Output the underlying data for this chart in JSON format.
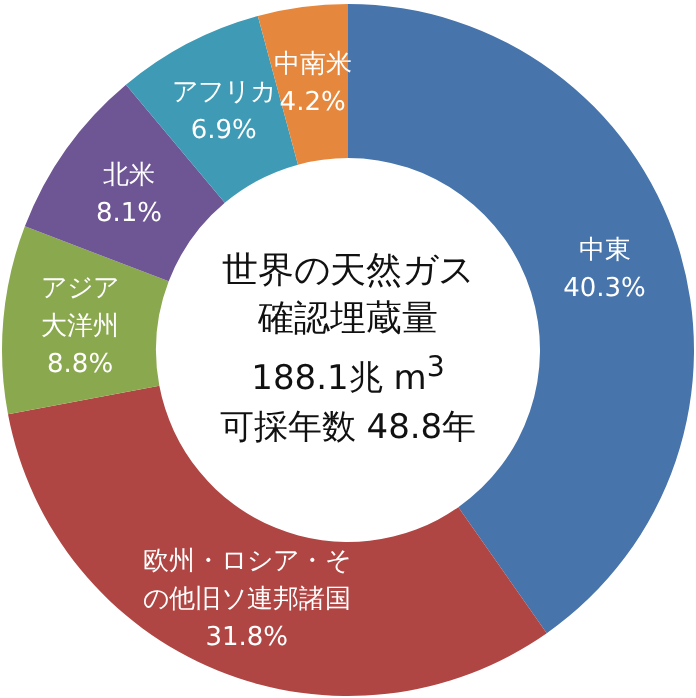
{
  "chart_data": {
    "type": "donut",
    "title": "世界の天然ガス確認埋蔵量",
    "annotations": [
      "188.1兆 m$^{3}$",
      "可採年数 48.8年"
    ],
    "categories": [
      "中東",
      "欧州・ロシア・その他旧ソ連邦諸国",
      "アジア大洋州",
      "北米",
      "アフリカ",
      "中南米"
    ],
    "values": [
      40.3,
      31.8,
      8.8,
      8.1,
      6.9,
      4.2
    ],
    "value_labels": [
      "40.3%",
      "31.8%",
      "8.8%",
      "8.1%",
      "6.9%",
      "4.2%"
    ],
    "colors": [
      "#4674ab",
      "#b04643",
      "#8aa84e",
      "#6e5594",
      "#3f9bb5",
      "#e5883d"
    ],
    "legend": false
  }
}
